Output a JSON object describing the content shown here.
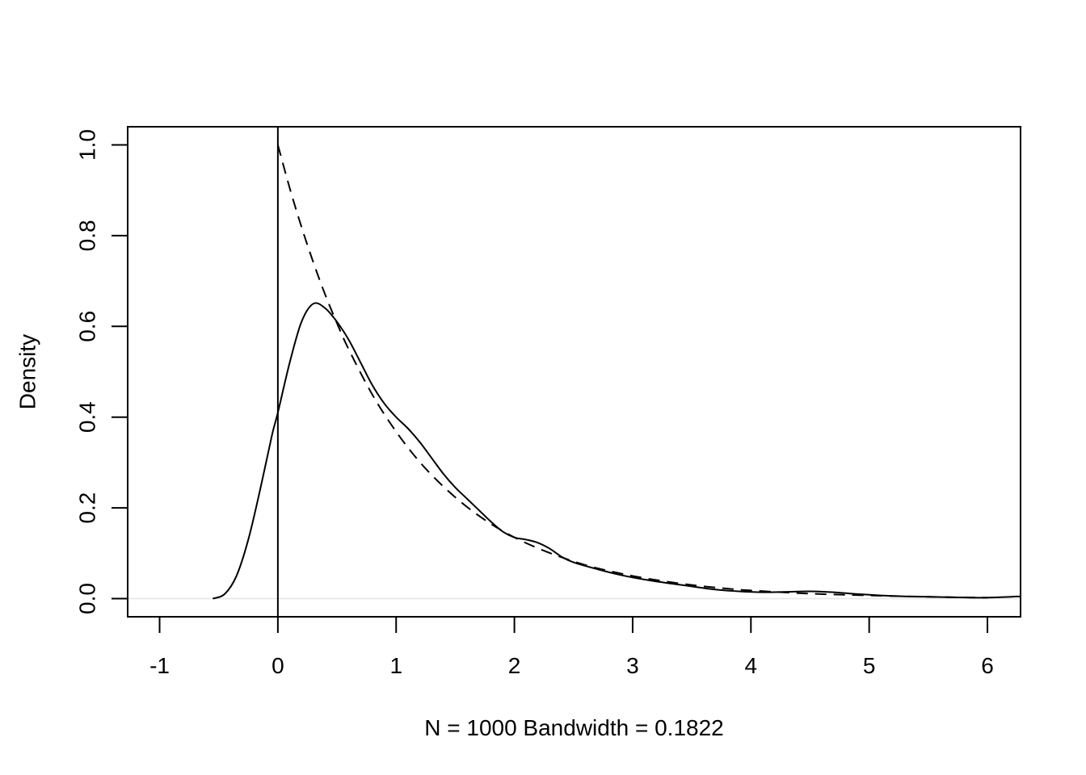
{
  "chart_data": {
    "type": "line",
    "title": "",
    "xlabel": "N = 1000   Bandwidth = 0.1822",
    "ylabel": "Density",
    "xlim": [
      -1.27,
      6.28
    ],
    "ylim": [
      -0.04,
      1.04
    ],
    "x_ticks": [
      -1,
      0,
      1,
      2,
      3,
      4,
      5,
      6
    ],
    "x_tick_labels": [
      "-1",
      "0",
      "1",
      "2",
      "3",
      "4",
      "5",
      "6"
    ],
    "y_ticks": [
      0.0,
      0.2,
      0.4,
      0.6,
      0.8,
      1.0
    ],
    "y_tick_labels": [
      "0.0",
      "0.2",
      "0.4",
      "0.6",
      "0.8",
      "1.0"
    ],
    "grid": false,
    "legend": "none",
    "reference_lines": {
      "vertical_x": 0,
      "horizontal_y": 0,
      "vertical_color": "#000000",
      "horizontal_color": "#e6e6e6"
    },
    "series": [
      {
        "style": "solid",
        "color": "#000000",
        "x": [
          -0.55,
          -0.45,
          -0.35,
          -0.25,
          -0.15,
          -0.05,
          0.0,
          0.1,
          0.2,
          0.3,
          0.4,
          0.5,
          0.6,
          0.7,
          0.8,
          0.9,
          1.0,
          1.1,
          1.2,
          1.3,
          1.4,
          1.5,
          1.6,
          1.7,
          1.8,
          1.9,
          2.0,
          2.1,
          2.2,
          2.3,
          2.4,
          2.5,
          2.7,
          2.9,
          3.1,
          3.3,
          3.5,
          3.7,
          3.9,
          4.1,
          4.3,
          4.5,
          4.7,
          4.9,
          5.1,
          5.3,
          5.5,
          5.7,
          5.9,
          6.1,
          6.28
        ],
        "y": [
          0.0,
          0.01,
          0.05,
          0.13,
          0.24,
          0.36,
          0.41,
          0.52,
          0.61,
          0.65,
          0.64,
          0.61,
          0.57,
          0.52,
          0.47,
          0.43,
          0.4,
          0.375,
          0.345,
          0.31,
          0.275,
          0.245,
          0.22,
          0.195,
          0.17,
          0.148,
          0.135,
          0.13,
          0.123,
          0.11,
          0.092,
          0.08,
          0.065,
          0.052,
          0.042,
          0.034,
          0.027,
          0.02,
          0.016,
          0.014,
          0.015,
          0.016,
          0.014,
          0.01,
          0.007,
          0.005,
          0.004,
          0.003,
          0.002,
          0.003,
          0.005
        ]
      },
      {
        "style": "dashed",
        "color": "#000000",
        "x": [
          0.0,
          0.1,
          0.2,
          0.3,
          0.4,
          0.5,
          0.6,
          0.8,
          1.0,
          1.2,
          1.4,
          1.6,
          1.8,
          2.0,
          2.2,
          2.4,
          2.6,
          2.8,
          3.0,
          3.2,
          3.5,
          3.8,
          4.0,
          4.5,
          5.0,
          5.5,
          6.0
        ],
        "y": [
          1.0,
          0.905,
          0.819,
          0.741,
          0.67,
          0.607,
          0.549,
          0.449,
          0.368,
          0.301,
          0.247,
          0.202,
          0.165,
          0.135,
          0.111,
          0.091,
          0.074,
          0.061,
          0.05,
          0.041,
          0.03,
          0.022,
          0.018,
          0.011,
          0.007,
          0.004,
          0.002
        ]
      }
    ]
  }
}
